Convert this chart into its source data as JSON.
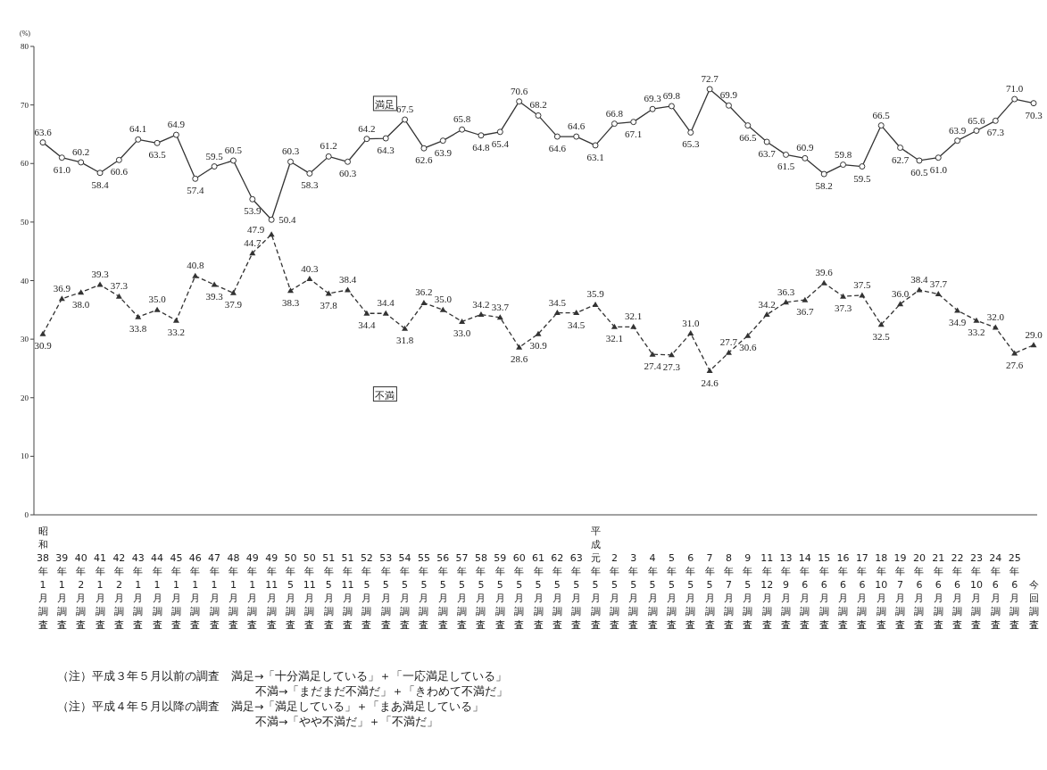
{
  "chart_data": {
    "type": "line",
    "ylabel": "(%)",
    "categories": [
      "昭和38年1月調査",
      "39年1月調査",
      "40年2月調査",
      "41年1月調査",
      "42年2月調査",
      "43年1月調査",
      "44年1月調査",
      "45年1月調査",
      "46年1月調査",
      "47年1月調査",
      "48年1月調査",
      "49年1月調査",
      "49年11月調査",
      "50年5月調査",
      "50年11月調査",
      "51年5月調査",
      "51年11月調査",
      "52年5月調査",
      "53年5月調査",
      "54年5月調査",
      "55年5月調査",
      "56年5月調査",
      "57年5月調査",
      "58年5月調査",
      "59年5月調査",
      "60年5月調査",
      "61年5月調査",
      "62年5月調査",
      "63年5月調査",
      "平成元年5月調査",
      "2年5月調査",
      "3年5月調査",
      "4年5月調査",
      "5年5月調査",
      "6年5月調査",
      "7年5月調査",
      "8年7月調査",
      "9年5月調査",
      "11年12月調査",
      "13年9月調査",
      "14年6月調査",
      "15年6月調査",
      "16年6月調査",
      "17年6月調査",
      "18年10月調査",
      "19年7月調査",
      "20年6月調査",
      "21年6月調査",
      "22年6月調査",
      "23年10月調査",
      "24年6月調査",
      "25年6月調査",
      "今回調査"
    ],
    "series": [
      {
        "name": "満足",
        "color": "#333333",
        "marker": "circle",
        "line_style": "solid",
        "value_labels": [
          "63.6",
          "61.0",
          "60.2",
          "58.4",
          "60.6",
          "64.1",
          "63.5",
          "64.9",
          "57.4",
          "59.5",
          "60.5",
          "53.9",
          "50.4",
          "60.3",
          "58.3",
          "61.2",
          "60.3",
          "64.2",
          "64.3",
          "67.5",
          "62.6",
          "63.9",
          "65.8",
          "64.8",
          "65.4",
          "70.6",
          "68.2",
          "64.6",
          "64.6",
          "63.1",
          "66.8",
          "67.1",
          "69.3",
          "69.8",
          "65.3",
          "72.7",
          "69.9",
          "66.5",
          "63.7",
          "61.5",
          "60.9",
          "58.2",
          "59.8",
          "59.5",
          "66.5",
          "62.7",
          "60.5",
          "61.0",
          "63.9",
          "65.6",
          "67.3",
          "71.0",
          "70.3"
        ],
        "values": [
          63.6,
          61.0,
          60.2,
          58.4,
          60.6,
          64.1,
          63.5,
          64.9,
          57.4,
          59.5,
          60.5,
          53.9,
          50.4,
          60.3,
          58.3,
          61.2,
          60.3,
          64.2,
          64.3,
          67.5,
          62.6,
          63.9,
          65.8,
          64.8,
          65.4,
          70.6,
          68.2,
          64.6,
          64.6,
          63.1,
          66.8,
          67.1,
          69.3,
          69.8,
          65.3,
          72.7,
          69.9,
          66.5,
          63.7,
          61.5,
          60.9,
          58.2,
          59.8,
          59.5,
          66.5,
          62.7,
          60.5,
          61.0,
          63.9,
          65.6,
          67.3,
          71.0,
          70.3
        ]
      },
      {
        "name": "不満",
        "color": "#333333",
        "marker": "triangle",
        "line_style": "dashed",
        "value_labels": [
          "30.9",
          "36.9",
          "38.0",
          "39.3",
          "37.3",
          "33.8",
          "35.0",
          "33.2",
          "40.8",
          "39.3",
          "37.9",
          "44.7",
          "47.9",
          "38.3",
          "40.3",
          "37.8",
          "38.4",
          "34.4",
          "34.4",
          "31.8",
          "36.2",
          "35.0",
          "33.0",
          "34.2",
          "33.7",
          "28.6",
          "30.9",
          "34.5",
          "34.5",
          "35.9",
          "32.1",
          "32.1",
          "27.4",
          "27.3",
          "31.0",
          "24.6",
          "27.7",
          "30.6",
          "34.2",
          "36.3",
          "36.7",
          "39.6",
          "37.3",
          "37.5",
          "32.5",
          "36.0",
          "38.4",
          "37.7",
          "34.9",
          "33.2",
          "32.0",
          "27.6",
          "29.0"
        ],
        "values": [
          30.9,
          36.9,
          38.0,
          39.3,
          37.3,
          33.8,
          35.0,
          33.2,
          40.8,
          39.3,
          37.9,
          44.7,
          47.9,
          38.3,
          40.3,
          37.8,
          38.4,
          34.4,
          34.4,
          31.8,
          36.2,
          35.0,
          33.0,
          34.2,
          33.7,
          28.6,
          30.9,
          34.5,
          34.5,
          35.9,
          32.1,
          32.1,
          27.4,
          27.3,
          31.0,
          24.6,
          27.7,
          30.6,
          34.2,
          36.3,
          36.7,
          39.6,
          37.3,
          37.5,
          32.5,
          36.0,
          38.4,
          37.7,
          34.9,
          33.2,
          32.0,
          27.6,
          29.0
        ]
      }
    ],
    "ylim": [
      0,
      80
    ],
    "yticks": [
      0,
      10,
      20,
      30,
      40,
      50,
      60,
      70,
      80
    ],
    "grid": false,
    "legend": false,
    "annotations": [
      "（注）平成３年５月以前の調査　満足→「十分満足している」＋「一応満足している」",
      "不満→「まだまだ不満だ」＋「きわめて不満だ」",
      "（注）平成４年５月以降の調査　満足→「満足している」＋「まあ満足している」",
      "不満→「やや不満だ」＋「不満だ」"
    ]
  }
}
